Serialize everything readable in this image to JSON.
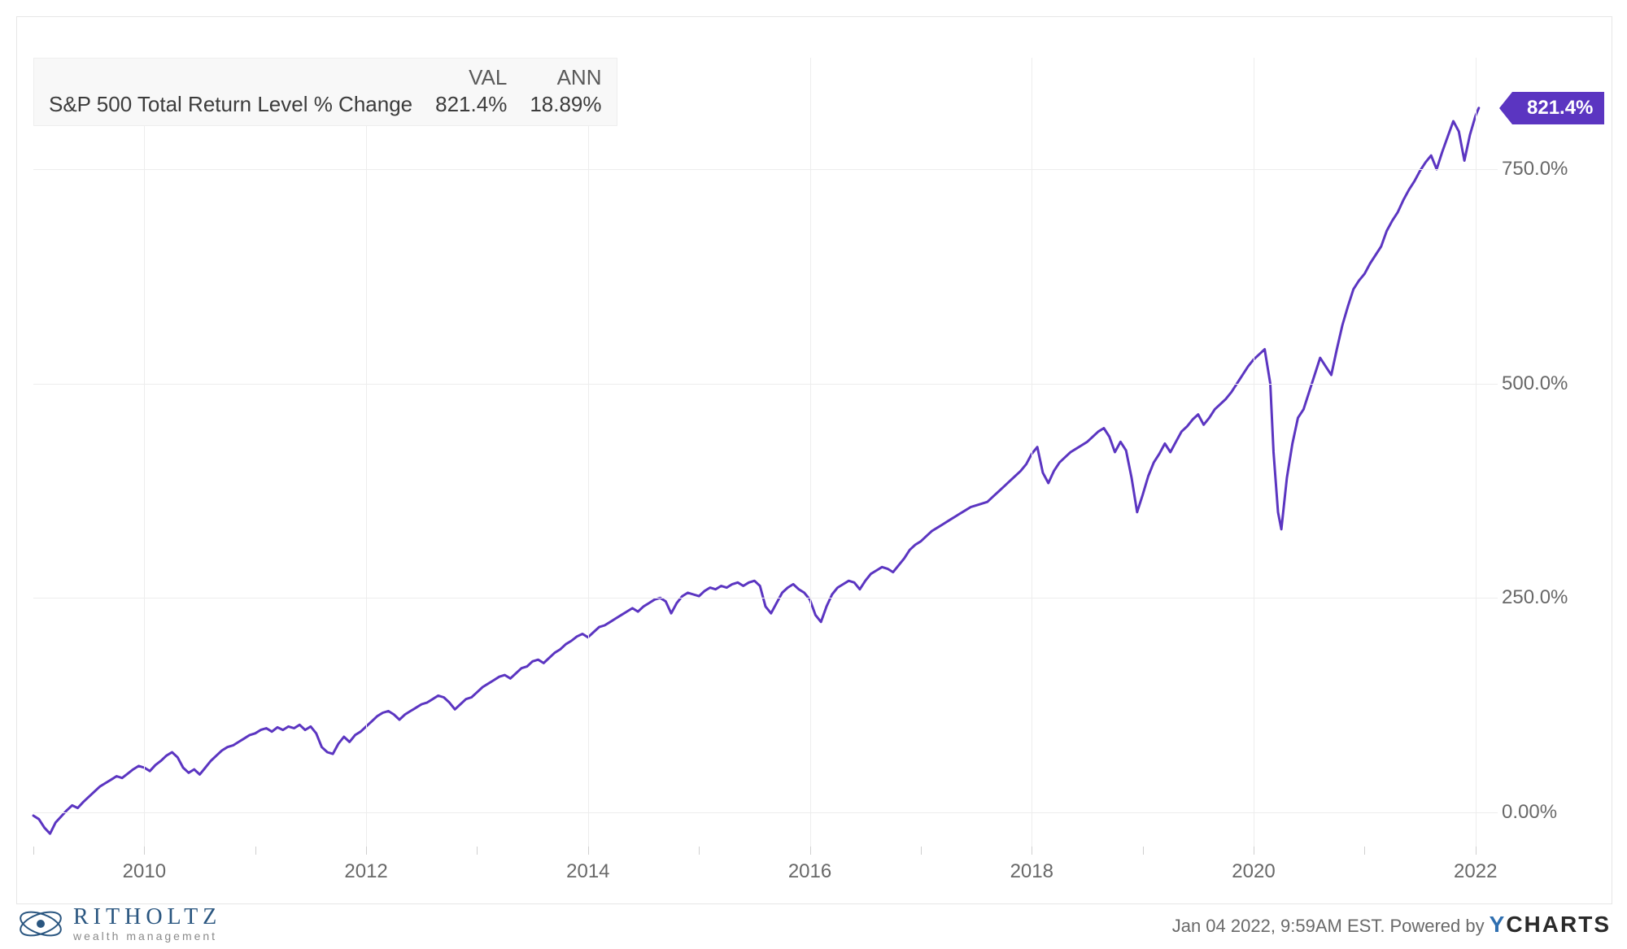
{
  "chart": {
    "type": "line",
    "series_name": "S&P 500 Total Return Level % Change",
    "legend_headers": {
      "val": "VAL",
      "ann": "ANN"
    },
    "legend_values": {
      "val": "821.4%",
      "ann": "18.89%"
    },
    "line_color": "#5b35c1",
    "line_width": 3,
    "background_color": "#ffffff",
    "border_color": "#e6e6e6",
    "grid_color": "#ededed",
    "axis_label_color": "#686868",
    "axis_fontsize": 24,
    "x": {
      "min": 2009.0,
      "max": 2022.2,
      "tick_values": [
        2010,
        2012,
        2014,
        2016,
        2018,
        2020,
        2022
      ],
      "tick_labels": [
        "2010",
        "2012",
        "2014",
        "2016",
        "2018",
        "2020",
        "2022"
      ]
    },
    "y": {
      "min": -40,
      "max": 880,
      "tick_values": [
        0,
        250,
        500,
        750
      ],
      "tick_labels": [
        "0.00%",
        "250.0%",
        "500.0%",
        "750.0%"
      ]
    },
    "badge": {
      "text": "821.4%",
      "value": 821.4,
      "bg": "#5b35c1",
      "fg": "#ffffff"
    },
    "data": [
      [
        2009.0,
        -4
      ],
      [
        2009.05,
        -8
      ],
      [
        2009.1,
        -18
      ],
      [
        2009.15,
        -25
      ],
      [
        2009.2,
        -12
      ],
      [
        2009.25,
        -5
      ],
      [
        2009.3,
        2
      ],
      [
        2009.35,
        8
      ],
      [
        2009.4,
        5
      ],
      [
        2009.45,
        12
      ],
      [
        2009.5,
        18
      ],
      [
        2009.55,
        24
      ],
      [
        2009.6,
        30
      ],
      [
        2009.65,
        34
      ],
      [
        2009.7,
        38
      ],
      [
        2009.75,
        42
      ],
      [
        2009.8,
        40
      ],
      [
        2009.85,
        45
      ],
      [
        2009.9,
        50
      ],
      [
        2009.95,
        54
      ],
      [
        2010.0,
        52
      ],
      [
        2010.05,
        48
      ],
      [
        2010.1,
        55
      ],
      [
        2010.15,
        60
      ],
      [
        2010.2,
        66
      ],
      [
        2010.25,
        70
      ],
      [
        2010.3,
        64
      ],
      [
        2010.35,
        52
      ],
      [
        2010.4,
        46
      ],
      [
        2010.45,
        50
      ],
      [
        2010.5,
        44
      ],
      [
        2010.55,
        52
      ],
      [
        2010.6,
        60
      ],
      [
        2010.65,
        66
      ],
      [
        2010.7,
        72
      ],
      [
        2010.75,
        76
      ],
      [
        2010.8,
        78
      ],
      [
        2010.85,
        82
      ],
      [
        2010.9,
        86
      ],
      [
        2010.95,
        90
      ],
      [
        2011.0,
        92
      ],
      [
        2011.05,
        96
      ],
      [
        2011.1,
        98
      ],
      [
        2011.15,
        94
      ],
      [
        2011.2,
        99
      ],
      [
        2011.25,
        96
      ],
      [
        2011.3,
        100
      ],
      [
        2011.35,
        98
      ],
      [
        2011.4,
        102
      ],
      [
        2011.45,
        96
      ],
      [
        2011.5,
        100
      ],
      [
        2011.55,
        92
      ],
      [
        2011.6,
        76
      ],
      [
        2011.65,
        70
      ],
      [
        2011.7,
        68
      ],
      [
        2011.75,
        80
      ],
      [
        2011.8,
        88
      ],
      [
        2011.85,
        82
      ],
      [
        2011.9,
        90
      ],
      [
        2011.95,
        94
      ],
      [
        2012.0,
        100
      ],
      [
        2012.05,
        106
      ],
      [
        2012.1,
        112
      ],
      [
        2012.15,
        116
      ],
      [
        2012.2,
        118
      ],
      [
        2012.25,
        114
      ],
      [
        2012.3,
        108
      ],
      [
        2012.35,
        114
      ],
      [
        2012.4,
        118
      ],
      [
        2012.45,
        122
      ],
      [
        2012.5,
        126
      ],
      [
        2012.55,
        128
      ],
      [
        2012.6,
        132
      ],
      [
        2012.65,
        136
      ],
      [
        2012.7,
        134
      ],
      [
        2012.75,
        128
      ],
      [
        2012.8,
        120
      ],
      [
        2012.85,
        126
      ],
      [
        2012.9,
        132
      ],
      [
        2012.95,
        134
      ],
      [
        2013.0,
        140
      ],
      [
        2013.05,
        146
      ],
      [
        2013.1,
        150
      ],
      [
        2013.15,
        154
      ],
      [
        2013.2,
        158
      ],
      [
        2013.25,
        160
      ],
      [
        2013.3,
        156
      ],
      [
        2013.35,
        162
      ],
      [
        2013.4,
        168
      ],
      [
        2013.45,
        170
      ],
      [
        2013.5,
        176
      ],
      [
        2013.55,
        178
      ],
      [
        2013.6,
        174
      ],
      [
        2013.65,
        180
      ],
      [
        2013.7,
        186
      ],
      [
        2013.75,
        190
      ],
      [
        2013.8,
        196
      ],
      [
        2013.85,
        200
      ],
      [
        2013.9,
        205
      ],
      [
        2013.95,
        208
      ],
      [
        2014.0,
        204
      ],
      [
        2014.05,
        210
      ],
      [
        2014.1,
        216
      ],
      [
        2014.15,
        218
      ],
      [
        2014.2,
        222
      ],
      [
        2014.25,
        226
      ],
      [
        2014.3,
        230
      ],
      [
        2014.35,
        234
      ],
      [
        2014.4,
        238
      ],
      [
        2014.45,
        234
      ],
      [
        2014.5,
        240
      ],
      [
        2014.55,
        244
      ],
      [
        2014.6,
        248
      ],
      [
        2014.65,
        250
      ],
      [
        2014.7,
        246
      ],
      [
        2014.75,
        232
      ],
      [
        2014.8,
        244
      ],
      [
        2014.85,
        252
      ],
      [
        2014.9,
        256
      ],
      [
        2014.95,
        254
      ],
      [
        2015.0,
        252
      ],
      [
        2015.05,
        258
      ],
      [
        2015.1,
        262
      ],
      [
        2015.15,
        260
      ],
      [
        2015.2,
        264
      ],
      [
        2015.25,
        262
      ],
      [
        2015.3,
        266
      ],
      [
        2015.35,
        268
      ],
      [
        2015.4,
        264
      ],
      [
        2015.45,
        268
      ],
      [
        2015.5,
        270
      ],
      [
        2015.55,
        264
      ],
      [
        2015.6,
        240
      ],
      [
        2015.65,
        232
      ],
      [
        2015.7,
        244
      ],
      [
        2015.75,
        256
      ],
      [
        2015.8,
        262
      ],
      [
        2015.85,
        266
      ],
      [
        2015.9,
        260
      ],
      [
        2015.95,
        256
      ],
      [
        2016.0,
        248
      ],
      [
        2016.05,
        230
      ],
      [
        2016.1,
        222
      ],
      [
        2016.15,
        240
      ],
      [
        2016.2,
        254
      ],
      [
        2016.25,
        262
      ],
      [
        2016.3,
        266
      ],
      [
        2016.35,
        270
      ],
      [
        2016.4,
        268
      ],
      [
        2016.45,
        260
      ],
      [
        2016.5,
        270
      ],
      [
        2016.55,
        278
      ],
      [
        2016.6,
        282
      ],
      [
        2016.65,
        286
      ],
      [
        2016.7,
        284
      ],
      [
        2016.75,
        280
      ],
      [
        2016.8,
        288
      ],
      [
        2016.85,
        296
      ],
      [
        2016.9,
        306
      ],
      [
        2016.95,
        312
      ],
      [
        2017.0,
        316
      ],
      [
        2017.05,
        322
      ],
      [
        2017.1,
        328
      ],
      [
        2017.15,
        332
      ],
      [
        2017.2,
        336
      ],
      [
        2017.25,
        340
      ],
      [
        2017.3,
        344
      ],
      [
        2017.35,
        348
      ],
      [
        2017.4,
        352
      ],
      [
        2017.45,
        356
      ],
      [
        2017.5,
        358
      ],
      [
        2017.55,
        360
      ],
      [
        2017.6,
        362
      ],
      [
        2017.65,
        368
      ],
      [
        2017.7,
        374
      ],
      [
        2017.75,
        380
      ],
      [
        2017.8,
        386
      ],
      [
        2017.85,
        392
      ],
      [
        2017.9,
        398
      ],
      [
        2017.95,
        406
      ],
      [
        2018.0,
        418
      ],
      [
        2018.05,
        426
      ],
      [
        2018.1,
        396
      ],
      [
        2018.15,
        384
      ],
      [
        2018.2,
        398
      ],
      [
        2018.25,
        408
      ],
      [
        2018.3,
        414
      ],
      [
        2018.35,
        420
      ],
      [
        2018.4,
        424
      ],
      [
        2018.45,
        428
      ],
      [
        2018.5,
        432
      ],
      [
        2018.55,
        438
      ],
      [
        2018.6,
        444
      ],
      [
        2018.65,
        448
      ],
      [
        2018.7,
        438
      ],
      [
        2018.75,
        420
      ],
      [
        2018.8,
        432
      ],
      [
        2018.85,
        422
      ],
      [
        2018.9,
        390
      ],
      [
        2018.95,
        350
      ],
      [
        2019.0,
        370
      ],
      [
        2019.05,
        392
      ],
      [
        2019.1,
        408
      ],
      [
        2019.15,
        418
      ],
      [
        2019.2,
        430
      ],
      [
        2019.25,
        420
      ],
      [
        2019.3,
        432
      ],
      [
        2019.35,
        444
      ],
      [
        2019.4,
        450
      ],
      [
        2019.45,
        458
      ],
      [
        2019.5,
        464
      ],
      [
        2019.55,
        452
      ],
      [
        2019.6,
        460
      ],
      [
        2019.65,
        470
      ],
      [
        2019.7,
        476
      ],
      [
        2019.75,
        482
      ],
      [
        2019.8,
        490
      ],
      [
        2019.85,
        500
      ],
      [
        2019.9,
        510
      ],
      [
        2019.95,
        520
      ],
      [
        2020.0,
        528
      ],
      [
        2020.05,
        534
      ],
      [
        2020.1,
        540
      ],
      [
        2020.15,
        500
      ],
      [
        2020.18,
        420
      ],
      [
        2020.22,
        350
      ],
      [
        2020.25,
        330
      ],
      [
        2020.3,
        390
      ],
      [
        2020.35,
        430
      ],
      [
        2020.4,
        460
      ],
      [
        2020.45,
        470
      ],
      [
        2020.5,
        490
      ],
      [
        2020.55,
        510
      ],
      [
        2020.6,
        530
      ],
      [
        2020.65,
        520
      ],
      [
        2020.7,
        510
      ],
      [
        2020.75,
        540
      ],
      [
        2020.8,
        568
      ],
      [
        2020.85,
        590
      ],
      [
        2020.9,
        610
      ],
      [
        2020.95,
        620
      ],
      [
        2021.0,
        628
      ],
      [
        2021.05,
        640
      ],
      [
        2021.1,
        650
      ],
      [
        2021.15,
        660
      ],
      [
        2021.2,
        678
      ],
      [
        2021.25,
        690
      ],
      [
        2021.3,
        700
      ],
      [
        2021.35,
        714
      ],
      [
        2021.4,
        726
      ],
      [
        2021.45,
        736
      ],
      [
        2021.5,
        748
      ],
      [
        2021.55,
        758
      ],
      [
        2021.6,
        766
      ],
      [
        2021.65,
        750
      ],
      [
        2021.7,
        770
      ],
      [
        2021.75,
        788
      ],
      [
        2021.8,
        806
      ],
      [
        2021.85,
        794
      ],
      [
        2021.9,
        760
      ],
      [
        2021.95,
        790
      ],
      [
        2022.0,
        812
      ],
      [
        2022.03,
        821.4
      ]
    ]
  },
  "footer": {
    "brand_top": "RITHOLTZ",
    "brand_sub": "wealth management",
    "timestamp": "Jan 04 2022, 9:59AM EST.",
    "powered_by": "Powered by",
    "ycharts_y": "Y",
    "ycharts_rest": "CHARTS"
  }
}
